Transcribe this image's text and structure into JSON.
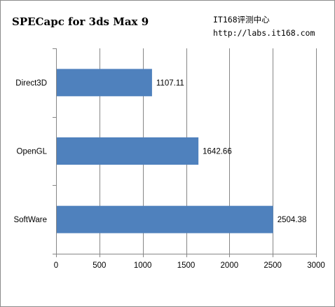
{
  "header": {
    "title": "SPECapc for 3ds Max 9",
    "source_name": "IT168评测中心",
    "source_url": "http://labs.it168.com"
  },
  "chart_data": {
    "type": "bar",
    "orientation": "horizontal",
    "categories": [
      "Direct3D",
      "OpenGL",
      "SoftWare"
    ],
    "values": [
      1107.11,
      1642.66,
      2504.38
    ],
    "value_labels": [
      "1107.11",
      "1642.66",
      "2504.38"
    ],
    "xlim": [
      0,
      3000
    ],
    "xticks": [
      0,
      500,
      1000,
      1500,
      2000,
      2500,
      3000
    ],
    "grid": true,
    "legend": "none",
    "bar_color": "#4f81bd"
  }
}
